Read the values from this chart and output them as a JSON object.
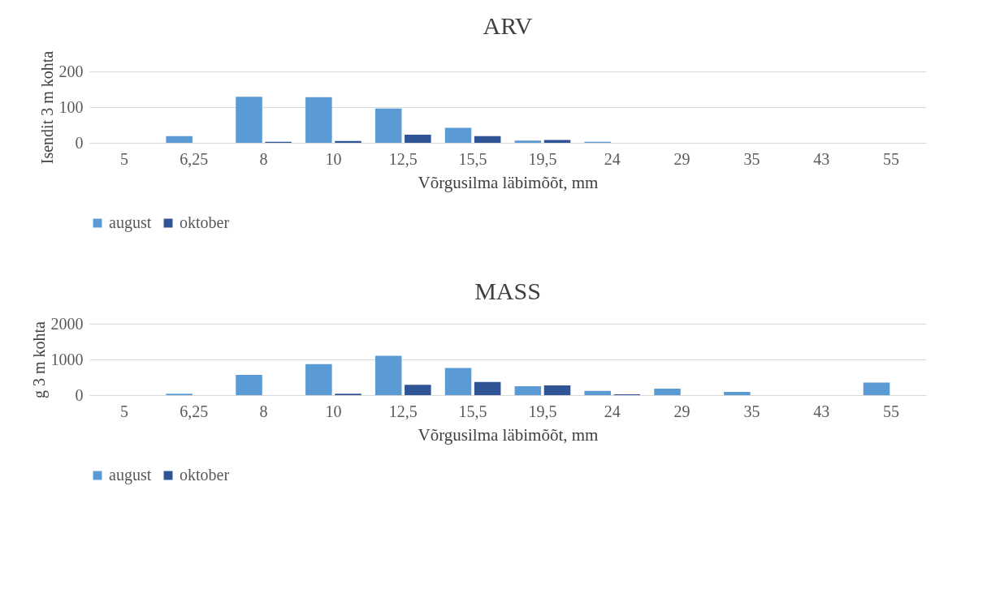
{
  "chart_data": [
    {
      "type": "bar",
      "title": "ARV",
      "xlabel": "Võrgusilma läbimõõt, mm",
      "ylabel": "Isendit 3 m kohta",
      "categories": [
        "5",
        "6,25",
        "8",
        "10",
        "12,5",
        "15,5",
        "19,5",
        "24",
        "29",
        "35",
        "43",
        "55"
      ],
      "series": [
        {
          "name": "august",
          "color": "#5b9bd5",
          "values": [
            0,
            19,
            129,
            128,
            96,
            42,
            6,
            3,
            0,
            0,
            0,
            0
          ]
        },
        {
          "name": "oktober",
          "color": "#2f5597",
          "values": [
            0,
            0,
            3,
            5,
            23,
            19,
            8,
            0,
            0,
            0,
            0,
            0
          ]
        }
      ],
      "ylim": [
        0,
        200
      ],
      "yticks": [
        0,
        100,
        200
      ],
      "grid": "y",
      "legend": "bottom"
    },
    {
      "type": "bar",
      "title": "MASS",
      "xlabel": "Võrgusilma läbimõõt, mm",
      "ylabel": "g 3 m kohta",
      "categories": [
        "5",
        "6,25",
        "8",
        "10",
        "12,5",
        "15,5",
        "19,5",
        "24",
        "29",
        "35",
        "43",
        "55"
      ],
      "series": [
        {
          "name": "august",
          "color": "#5b9bd5",
          "values": [
            0,
            40,
            570,
            870,
            1100,
            760,
            250,
            120,
            180,
            90,
            0,
            350
          ]
        },
        {
          "name": "oktober",
          "color": "#2f5597",
          "values": [
            0,
            0,
            0,
            40,
            290,
            370,
            270,
            20,
            0,
            0,
            0,
            0
          ]
        }
      ],
      "ylim": [
        0,
        2000
      ],
      "yticks": [
        0,
        1000,
        2000
      ],
      "grid": "y",
      "legend": "bottom"
    }
  ]
}
